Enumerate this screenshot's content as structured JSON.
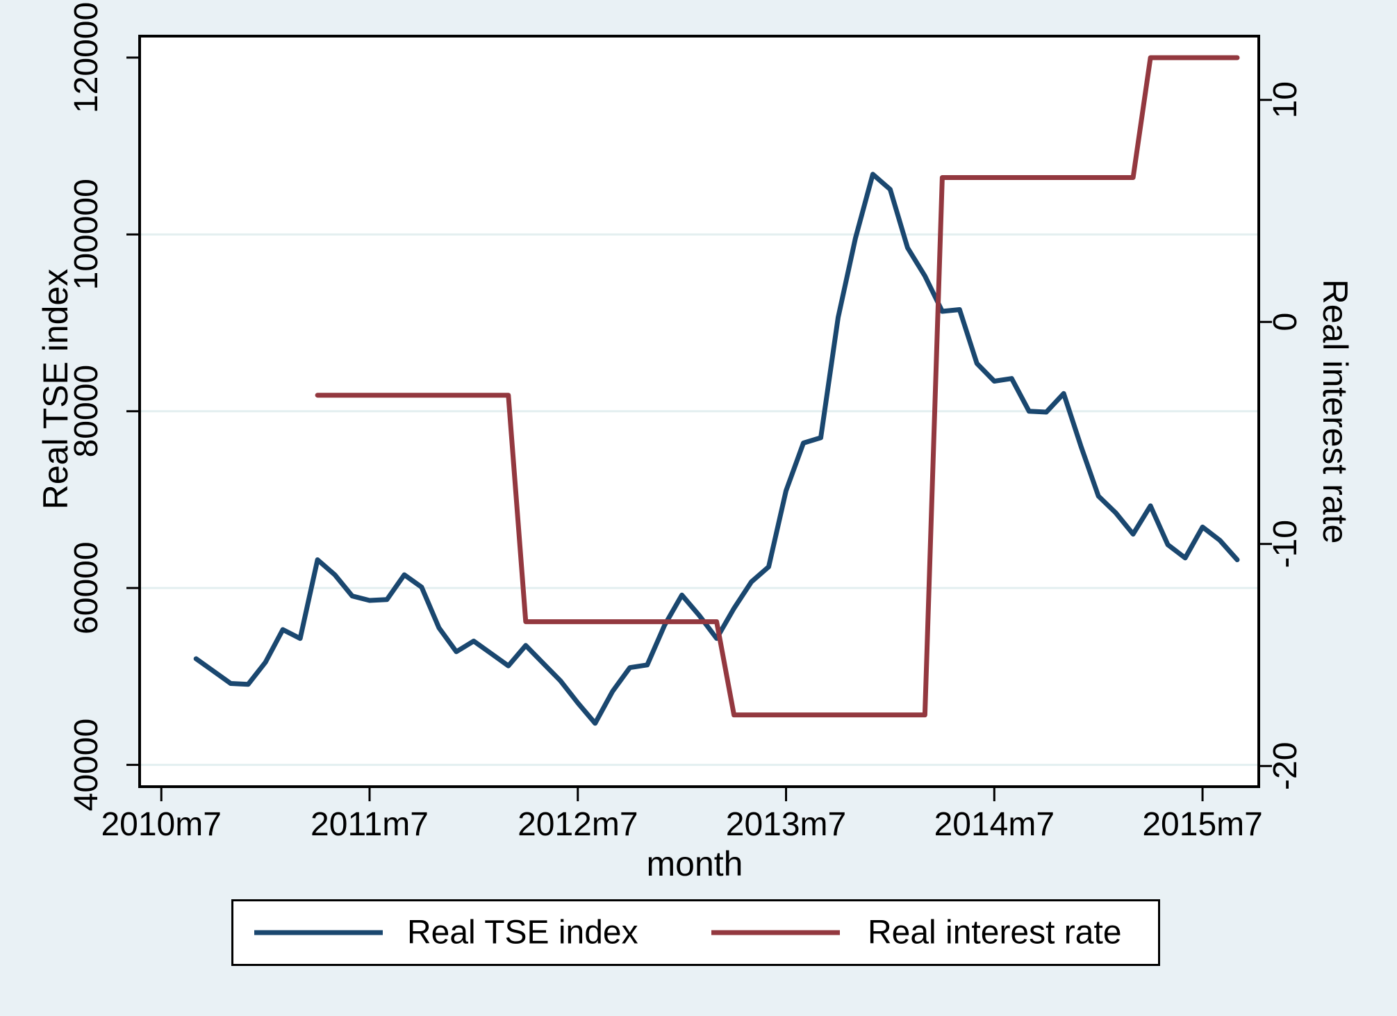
{
  "figure": {
    "background_color": "#e9f1f5",
    "plot_background_color": "#ffffff",
    "grid_color": "#e3eff0",
    "axis_color": "#000000",
    "text_color": "#000000"
  },
  "chart_data": {
    "type": "line",
    "title": "",
    "xlabel": "month",
    "ylabel_left": "Real TSE index",
    "ylabel_right": "Real interest rate",
    "grid": true,
    "legend_position": "bottom",
    "x_axis": {
      "tick_labels": [
        "2010m7",
        "2011m7",
        "2012m7",
        "2013m7",
        "2014m7",
        "2015m7"
      ],
      "range_months_from_2010m7": [
        -1.25,
        63.24
      ]
    },
    "left_axis": {
      "ticks": [
        40000,
        60000,
        80000,
        100000,
        120000
      ],
      "grid_ticks": [
        40000,
        60000,
        80000,
        100000
      ],
      "range": [
        37530,
        122430
      ]
    },
    "right_axis": {
      "ticks": [
        -20,
        -10,
        0,
        10
      ],
      "range": [
        -20.93,
        12.87
      ]
    },
    "series": [
      {
        "name": "Real TSE index",
        "axis": "left",
        "color": "#1a476f",
        "months": [
          "2010m9",
          "2010m10",
          "2010m11",
          "2010m12",
          "2011m1",
          "2011m2",
          "2011m3",
          "2011m4",
          "2011m5",
          "2011m6",
          "2011m7",
          "2011m8",
          "2011m9",
          "2011m10",
          "2011m11",
          "2011m12",
          "2012m1",
          "2012m2",
          "2012m3",
          "2012m4",
          "2012m5",
          "2012m6",
          "2012m7",
          "2012m8",
          "2012m9",
          "2012m10",
          "2012m11",
          "2012m12",
          "2013m1",
          "2013m2",
          "2013m3",
          "2013m4",
          "2013m5",
          "2013m6",
          "2013m7",
          "2013m8",
          "2013m9",
          "2013m10",
          "2013m11",
          "2013m12",
          "2014m1",
          "2014m2",
          "2014m3",
          "2014m4",
          "2014m5",
          "2014m6",
          "2014m7",
          "2014m8",
          "2014m9",
          "2014m10",
          "2014m11",
          "2014m12",
          "2015m1",
          "2015m2",
          "2015m3",
          "2015m4",
          "2015m5",
          "2015m6",
          "2015m7",
          "2015m8",
          "2015m9"
        ],
        "values": [
          52000,
          50600,
          49200,
          49100,
          51600,
          55300,
          54300,
          63200,
          61500,
          59100,
          58600,
          58700,
          61500,
          60100,
          55500,
          52800,
          54000,
          52600,
          51200,
          53500,
          51500,
          49500,
          47000,
          44700,
          48300,
          51000,
          51300,
          55800,
          59200,
          56900,
          54300,
          57700,
          60700,
          62400,
          71000,
          76400,
          77000,
          90600,
          99600,
          106800,
          105100,
          98500,
          95300,
          91300,
          91500,
          85400,
          83400,
          83700,
          80000,
          79900,
          82000,
          76000,
          70400,
          68500,
          66100,
          69300,
          64900,
          63400,
          66900,
          65400,
          63200
        ]
      },
      {
        "name": "Real interest rate",
        "axis": "right",
        "color": "#93383f",
        "months": [
          "2011m4",
          "2011m5",
          "2011m6",
          "2011m7",
          "2011m8",
          "2011m9",
          "2011m10",
          "2011m11",
          "2011m12",
          "2012m1",
          "2012m2",
          "2012m3",
          "2012m4",
          "2012m5",
          "2012m6",
          "2012m7",
          "2012m8",
          "2012m9",
          "2012m10",
          "2012m11",
          "2012m12",
          "2013m1",
          "2013m2",
          "2013m3",
          "2013m4",
          "2013m5",
          "2013m6",
          "2013m7",
          "2013m8",
          "2013m9",
          "2013m10",
          "2013m11",
          "2013m12",
          "2014m1",
          "2014m2",
          "2014m3",
          "2014m4",
          "2014m5",
          "2014m6",
          "2014m7",
          "2014m8",
          "2014m9",
          "2014m10",
          "2014m11",
          "2014m12",
          "2015m1",
          "2015m2",
          "2015m3",
          "2015m4",
          "2015m5",
          "2015m6",
          "2015m7",
          "2015m8",
          "2015m9"
        ],
        "values": [
          -3.3,
          -3.3,
          -3.3,
          -3.3,
          -3.3,
          -3.3,
          -3.3,
          -3.3,
          -3.3,
          -3.3,
          -3.3,
          -3.3,
          -13.5,
          -13.5,
          -13.5,
          -13.5,
          -13.5,
          -13.5,
          -13.5,
          -13.5,
          -13.5,
          -13.5,
          -13.5,
          -13.5,
          -17.7,
          -17.7,
          -17.7,
          -17.7,
          -17.7,
          -17.7,
          -17.7,
          -17.7,
          -17.7,
          -17.7,
          -17.7,
          -17.7,
          6.5,
          6.5,
          6.5,
          6.5,
          6.5,
          6.5,
          6.5,
          6.5,
          6.5,
          6.5,
          6.5,
          6.5,
          11.9,
          11.9,
          11.9,
          11.9,
          11.9,
          11.9
        ]
      }
    ]
  },
  "legend": {
    "items": [
      {
        "label": "Real TSE index",
        "color": "#1a476f"
      },
      {
        "label": "Real interest rate",
        "color": "#93383f"
      }
    ]
  }
}
